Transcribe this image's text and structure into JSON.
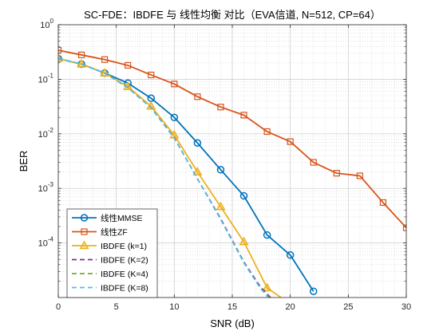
{
  "chart_data": {
    "type": "line",
    "title": "SC-FDE：IBDFE 与 线性均衡 对比（EVA信道, N=512, CP=64）",
    "xlabel": "SNR (dB)",
    "ylabel": "BER",
    "xlim": [
      0,
      30
    ],
    "ylim": [
      1e-05,
      1
    ],
    "yscale": "log",
    "grid": true,
    "minor_grid": true,
    "legend_position": "bottom-left",
    "x_ticks": [
      "0",
      "5",
      "10",
      "15",
      "20",
      "25",
      "30"
    ],
    "y_ticks": [
      {
        "value": 1,
        "base": "10",
        "exp": "0"
      },
      {
        "value": 0.1,
        "base": "10",
        "exp": "-1"
      },
      {
        "value": 0.01,
        "base": "10",
        "exp": "-2"
      },
      {
        "value": 0.001,
        "base": "10",
        "exp": "-3"
      },
      {
        "value": 0.0001,
        "base": "10",
        "exp": "-4"
      }
    ],
    "series": [
      {
        "name": "线性MMSE",
        "color": "#0072BD",
        "linestyle": "solid",
        "marker": "circle",
        "x": [
          0,
          2,
          4,
          6,
          8,
          10,
          12,
          14,
          16,
          18,
          20,
          22
        ],
        "y": [
          0.24,
          0.19,
          0.13,
          0.085,
          0.045,
          0.02,
          0.0068,
          0.0022,
          0.00073,
          0.00014,
          6e-05,
          1.3e-05
        ]
      },
      {
        "name": "线性ZF",
        "color": "#D95319",
        "linestyle": "solid",
        "marker": "square",
        "x": [
          0,
          2,
          4,
          6,
          8,
          10,
          12,
          14,
          16,
          18,
          20,
          22,
          24,
          26,
          28,
          30
        ],
        "y": [
          0.34,
          0.28,
          0.23,
          0.18,
          0.12,
          0.082,
          0.048,
          0.031,
          0.022,
          0.011,
          0.0072,
          0.003,
          0.0019,
          0.0017,
          0.00055,
          0.00019
        ]
      },
      {
        "name": "IBDFE (k=1)",
        "color": "#EDB120",
        "linestyle": "solid",
        "marker": "triangle",
        "x": [
          0,
          2,
          4,
          6,
          8,
          10,
          12,
          14,
          16,
          18,
          19.2
        ],
        "y": [
          0.24,
          0.19,
          0.13,
          0.073,
          0.032,
          0.0095,
          0.002,
          0.00046,
          0.000105,
          1.5e-05,
          1e-05
        ]
      },
      {
        "name": "IBDFE (K=2)",
        "color": "#7E2F8E",
        "linestyle": "dashed",
        "marker": "none",
        "x": [
          0,
          2,
          4,
          6,
          8,
          10,
          12,
          14,
          16,
          17.4,
          18.3
        ],
        "y": [
          0.24,
          0.19,
          0.13,
          0.07,
          0.03,
          0.0085,
          0.0015,
          0.00028,
          4.5e-05,
          1.6e-05,
          1e-05
        ]
      },
      {
        "name": "IBDFE (K=4)",
        "color": "#77AC30",
        "linestyle": "dashed",
        "marker": "none",
        "x": [
          0,
          2,
          4,
          6,
          8,
          10,
          12,
          14,
          16,
          17.4,
          18.2
        ],
        "y": [
          0.24,
          0.19,
          0.13,
          0.07,
          0.03,
          0.0084,
          0.0015,
          0.00027,
          4.4e-05,
          1.5e-05,
          1e-05
        ]
      },
      {
        "name": "IBDFE (K=8)",
        "color": "#4DBEEE",
        "linestyle": "dashed",
        "marker": "none",
        "x": [
          0,
          2,
          4,
          6,
          8,
          10,
          12,
          14,
          16,
          17.4,
          18.1
        ],
        "y": [
          0.24,
          0.19,
          0.13,
          0.07,
          0.03,
          0.0083,
          0.0015,
          0.00027,
          4.3e-05,
          1.5e-05,
          1e-05
        ]
      }
    ]
  }
}
